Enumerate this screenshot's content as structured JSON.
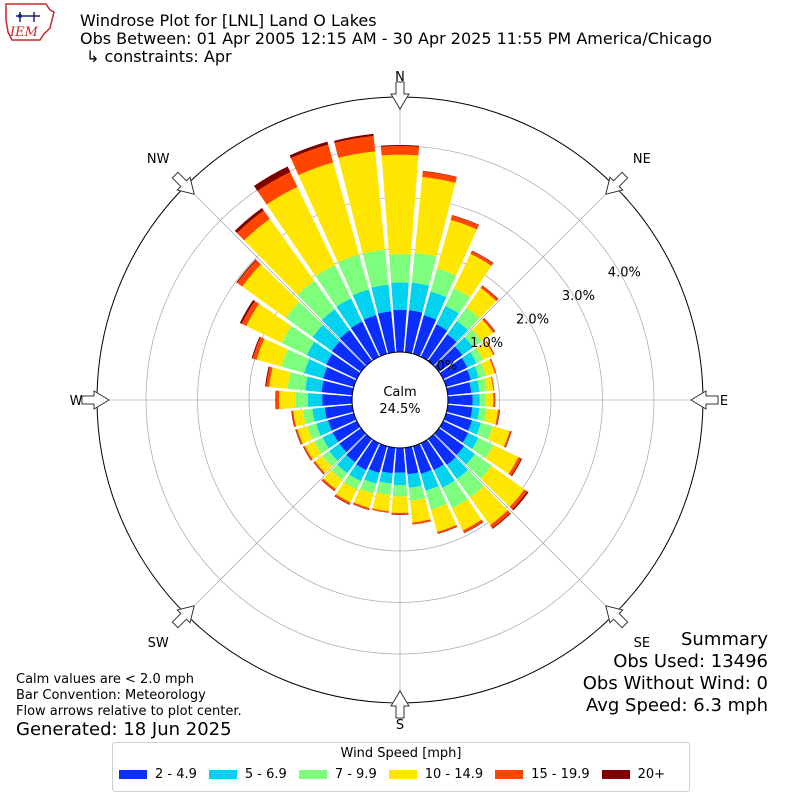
{
  "header": {
    "title": "Windrose Plot for [LNL] Land O Lakes",
    "subtitle": "Obs Between: 01 Apr 2005 12:15 AM - 30 Apr 2025 11:55 PM America/Chicago",
    "constraints": "↳ constraints: Apr",
    "logo_text": "IEM"
  },
  "calm": {
    "label": "Calm",
    "value": "24.5%"
  },
  "notes": {
    "line1": "Calm values are < 2.0 mph",
    "line2": "Bar Convention: Meteorology",
    "line3": "Flow arrows relative to plot center.",
    "generated": "Generated: 18 Jun 2025"
  },
  "summary": {
    "title": "Summary",
    "obs_used": "Obs Used: 13496",
    "obs_without_wind": "Obs Without Wind: 0",
    "avg_speed": "Avg Speed: 6.3 mph"
  },
  "legend": {
    "title": "Wind Speed [mph]",
    "items": [
      {
        "label": "2 - 4.9",
        "color": "#0a2eff"
      },
      {
        "label": "5 - 6.9",
        "color": "#00d2f0"
      },
      {
        "label": "7 - 9.9",
        "color": "#7dff7d"
      },
      {
        "label": "10 - 14.9",
        "color": "#ffe600"
      },
      {
        "label": "15 - 19.9",
        "color": "#ff4500"
      },
      {
        "label": "20+",
        "color": "#800000"
      }
    ]
  },
  "chart_data": {
    "type": "windrose",
    "radial_unit": "%",
    "radial_ticks": [
      0.0,
      1.0,
      2.0,
      3.0,
      4.0
    ],
    "radial_tick_labels": [
      "0.0%",
      "1.0%",
      "2.0%",
      "3.0%",
      "4.0%"
    ],
    "radial_max": 4.85,
    "directions": [
      "N",
      "NNE",
      "NE",
      "ENE",
      "E",
      "ESE",
      "SE",
      "SSE",
      "S",
      "SSW",
      "SW",
      "WSW",
      "W",
      "WNW",
      "NW",
      "NNW"
    ],
    "direction_labels_shown": [
      "N",
      "NE",
      "E",
      "SE",
      "S",
      "SW",
      "W",
      "NW"
    ],
    "bin_angles_deg": [
      0,
      10,
      20,
      30,
      40,
      50,
      60,
      70,
      80,
      90,
      100,
      110,
      120,
      130,
      140,
      150,
      160,
      170,
      180,
      190,
      200,
      210,
      220,
      230,
      240,
      250,
      260,
      270,
      280,
      290,
      300,
      310,
      320,
      330,
      340,
      350
    ],
    "series_names": [
      "2 - 4.9",
      "5 - 6.9",
      "7 - 9.9",
      "10 - 14.9",
      "15 - 19.9",
      "20+"
    ],
    "cumulative_percent": [
      [
        0.82,
        1.35,
        1.9,
        3.83,
        4.0,
        4.02
      ],
      [
        0.82,
        1.36,
        1.94,
        3.42,
        3.53,
        3.54
      ],
      [
        0.78,
        1.26,
        1.72,
        2.7,
        2.79,
        2.8
      ],
      [
        0.7,
        1.1,
        1.48,
        2.22,
        2.28,
        2.29
      ],
      [
        0.64,
        0.96,
        1.28,
        1.75,
        1.8,
        1.81
      ],
      [
        0.56,
        0.82,
        1.02,
        1.3,
        1.34,
        1.35
      ],
      [
        0.52,
        0.72,
        0.86,
        1.08,
        1.11,
        1.11
      ],
      [
        0.5,
        0.66,
        0.8,
        0.98,
        1.01,
        1.01
      ],
      [
        0.46,
        0.62,
        0.76,
        0.89,
        0.91,
        0.91
      ],
      [
        0.48,
        0.62,
        0.74,
        0.88,
        0.91,
        0.92
      ],
      [
        0.48,
        0.62,
        0.76,
        0.98,
        1.01,
        1.02
      ],
      [
        0.52,
        0.7,
        0.94,
        1.28,
        1.31,
        1.32
      ],
      [
        0.54,
        0.76,
        1.08,
        1.62,
        1.68,
        1.7
      ],
      [
        0.6,
        0.86,
        1.26,
        2.04,
        2.11,
        2.14
      ],
      [
        0.62,
        0.96,
        1.4,
        2.06,
        2.13,
        2.15
      ],
      [
        0.58,
        0.96,
        1.4,
        1.88,
        1.93,
        1.94
      ],
      [
        0.56,
        0.9,
        1.28,
        1.73,
        1.76,
        1.77
      ],
      [
        0.52,
        0.78,
        1.04,
        1.46,
        1.5,
        1.5
      ],
      [
        0.48,
        0.72,
        0.94,
        1.26,
        1.29,
        1.3
      ],
      [
        0.5,
        0.7,
        0.92,
        1.24,
        1.27,
        1.27
      ],
      [
        0.54,
        0.76,
        0.96,
        1.25,
        1.28,
        1.29
      ],
      [
        0.58,
        0.82,
        1.0,
        1.28,
        1.32,
        1.33
      ],
      [
        0.56,
        0.82,
        0.98,
        1.2,
        1.24,
        1.25
      ],
      [
        0.52,
        0.76,
        0.92,
        1.1,
        1.13,
        1.14
      ],
      [
        0.52,
        0.74,
        0.92,
        1.12,
        1.15,
        1.16
      ],
      [
        0.52,
        0.76,
        0.94,
        1.14,
        1.17,
        1.18
      ],
      [
        0.54,
        0.78,
        0.96,
        1.15,
        1.18,
        1.19
      ],
      [
        0.58,
        0.86,
        1.1,
        1.42,
        1.48,
        1.49
      ],
      [
        0.6,
        0.92,
        1.26,
        1.62,
        1.68,
        1.7
      ],
      [
        0.62,
        1.0,
        1.46,
        1.96,
        2.04,
        2.06
      ],
      [
        0.66,
        1.08,
        1.62,
        2.38,
        2.48,
        2.52
      ],
      [
        0.7,
        1.16,
        1.8,
        2.84,
        2.96,
        2.98
      ],
      [
        0.74,
        1.24,
        1.92,
        3.4,
        3.6,
        3.66
      ],
      [
        0.76,
        1.26,
        1.98,
        3.66,
        3.98,
        4.1
      ],
      [
        0.78,
        1.3,
        2.0,
        3.86,
        4.22,
        4.28
      ],
      [
        0.8,
        1.32,
        2.0,
        3.92,
        4.22,
        4.26
      ]
    ]
  }
}
